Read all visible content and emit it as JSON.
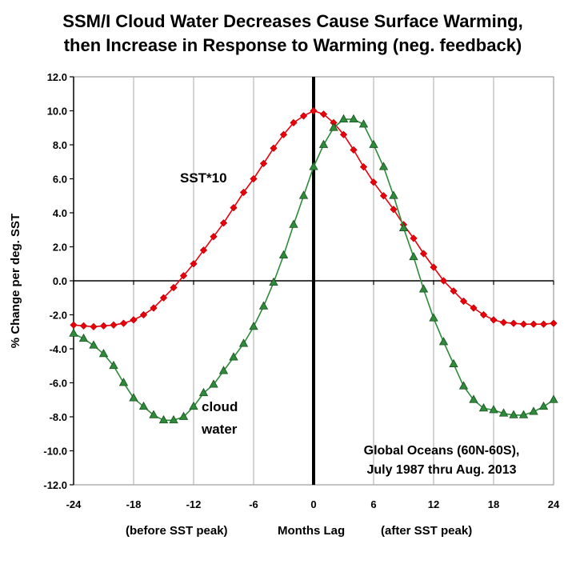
{
  "chart_data": {
    "type": "line",
    "title_lines": [
      "SSM/I Cloud Water Decreases Cause Surface Warming,",
      "then Increase in Response to Warming (neg. feedback)"
    ],
    "ylabel": "% Change per deg. SST",
    "xlabel_parts": [
      "(before SST peak)",
      "Months Lag",
      "(after SST peak)"
    ],
    "xlim": [
      -24,
      24
    ],
    "ylim": [
      -12,
      12
    ],
    "x_ticks": [
      -24,
      -18,
      -12,
      -6,
      0,
      6,
      12,
      18,
      24
    ],
    "y_ticks": [
      "12.0",
      "10.0",
      "8.0",
      "6.0",
      "4.0",
      "2.0",
      "0.0",
      "-2.0",
      "-4.0",
      "-6.0",
      "-8.0",
      "-10.0",
      "-12.0"
    ],
    "grid": "vertical",
    "x": [
      -24,
      -23,
      -22,
      -21,
      -20,
      -19,
      -18,
      -17,
      -16,
      -15,
      -14,
      -13,
      -12,
      -11,
      -10,
      -9,
      -8,
      -7,
      -6,
      -5,
      -4,
      -3,
      -2,
      -1,
      0,
      1,
      2,
      3,
      4,
      5,
      6,
      7,
      8,
      9,
      10,
      11,
      12,
      13,
      14,
      15,
      16,
      17,
      18,
      19,
      20,
      21,
      22,
      23,
      24
    ],
    "series": [
      {
        "label": "SST*10",
        "color": "#e8000b",
        "marker": "diamond",
        "values": [
          -2.6,
          -2.65,
          -2.7,
          -2.65,
          -2.6,
          -2.5,
          -2.3,
          -2.0,
          -1.6,
          -1.0,
          -0.4,
          0.3,
          1.0,
          1.8,
          2.6,
          3.4,
          4.3,
          5.2,
          6.0,
          6.9,
          7.8,
          8.6,
          9.3,
          9.7,
          10.0,
          9.8,
          9.3,
          8.6,
          7.7,
          6.7,
          5.8,
          5.0,
          4.2,
          3.3,
          2.5,
          1.6,
          0.8,
          0.0,
          -0.6,
          -1.2,
          -1.6,
          -2.0,
          -2.3,
          -2.45,
          -2.5,
          -2.55,
          -2.55,
          -2.55,
          -2.5
        ]
      },
      {
        "label_lines": [
          "cloud",
          "water"
        ],
        "color": "#2e8b3a",
        "marker": "triangle",
        "values": [
          -3.1,
          -3.4,
          -3.8,
          -4.3,
          -5.0,
          -6.0,
          -6.9,
          -7.4,
          -7.9,
          -8.2,
          -8.2,
          -8.0,
          -7.4,
          -6.6,
          -6.1,
          -5.3,
          -4.5,
          -3.7,
          -2.7,
          -1.5,
          -0.1,
          1.5,
          3.3,
          5.0,
          6.7,
          8.0,
          9.0,
          9.5,
          9.5,
          9.2,
          8.0,
          6.7,
          5.0,
          3.1,
          1.4,
          -0.5,
          -2.2,
          -3.6,
          -4.9,
          -6.2,
          -7.0,
          -7.5,
          -7.6,
          -7.8,
          -7.9,
          -7.9,
          -7.7,
          -7.4,
          -7.0
        ]
      }
    ],
    "annotation_lines": [
      "Global Oceans (60N-60S),",
      "July 1987 thru Aug. 2013"
    ]
  },
  "colors": {
    "sst": "#e8000b",
    "cloud": "#2e8b3a",
    "grid": "#b8b8b8",
    "axis": "#000000"
  }
}
